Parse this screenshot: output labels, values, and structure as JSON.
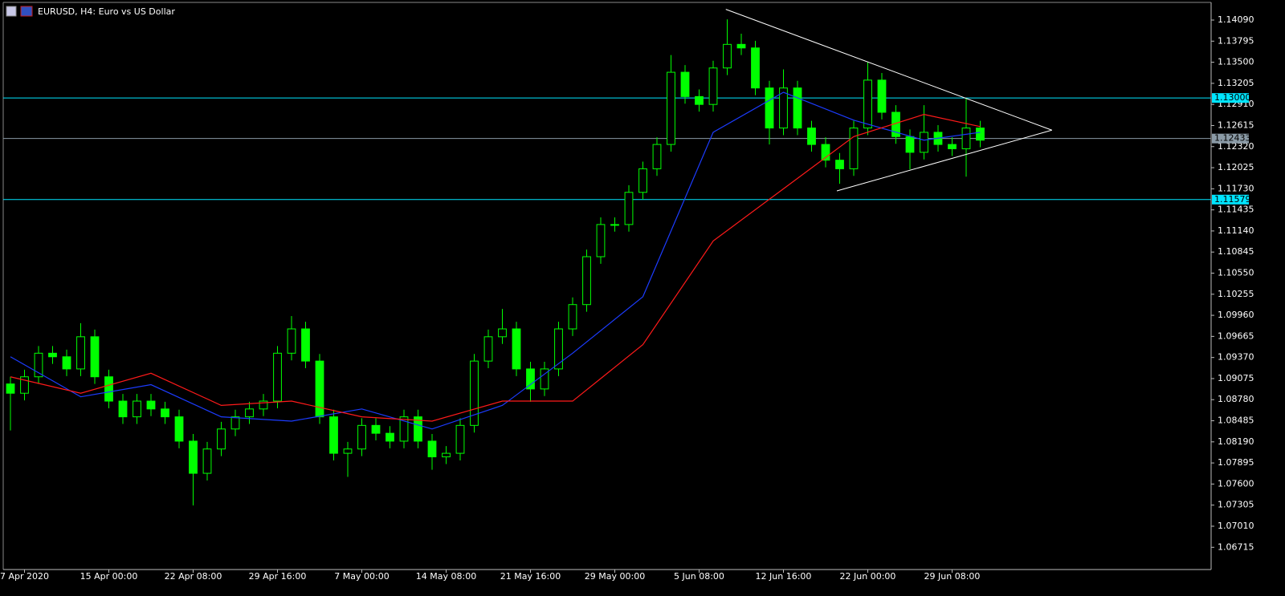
{
  "chart_data": {
    "type": "candlestick",
    "title": "EURUSD, H4:  Euro vs US Dollar",
    "categories": [
      null,
      "7 Apr 2020",
      null,
      null,
      null,
      null,
      null,
      "15 Apr 00:00",
      null,
      null,
      null,
      null,
      null,
      "22 Apr 08:00",
      null,
      null,
      null,
      null,
      null,
      "29 Apr 16:00",
      null,
      null,
      null,
      null,
      null,
      "7 May 00:00",
      null,
      null,
      null,
      null,
      null,
      "14 May 08:00",
      null,
      null,
      null,
      null,
      null,
      "21 May 16:00",
      null,
      null,
      null,
      null,
      null,
      "29 May 00:00",
      null,
      null,
      null,
      null,
      null,
      "5 Jun 08:00",
      null,
      null,
      null,
      null,
      null,
      "12 Jun 16:00",
      null,
      null,
      null,
      null,
      null,
      "22 Jun 00:00",
      null,
      null,
      null,
      null,
      null,
      "29 Jun 08:00",
      null,
      null
    ],
    "open": [
      1.09,
      1.0887,
      1.091,
      1.0943,
      1.0938,
      1.0921,
      1.0966,
      1.091,
      1.0876,
      1.0854,
      1.0876,
      1.0865,
      1.0854,
      1.082,
      1.0775,
      1.0809,
      1.0837,
      1.0854,
      1.0865,
      1.0876,
      1.0943,
      1.0977,
      1.0932,
      1.0854,
      1.0803,
      1.0809,
      1.0842,
      1.0831,
      1.082,
      1.0854,
      1.082,
      1.0798,
      1.0803,
      1.0842,
      1.0932,
      1.0966,
      1.0977,
      1.0921,
      1.0893,
      1.0921,
      1.0977,
      1.1011,
      1.1078,
      1.1123,
      1.1123,
      1.1168,
      1.1201,
      1.1235,
      1.1336,
      1.1302,
      1.1291,
      1.1342,
      1.1375,
      1.137,
      1.1314,
      1.1258,
      1.1314,
      1.1258,
      1.1235,
      1.1213,
      1.1201,
      1.1258,
      1.1325,
      1.128,
      1.1246,
      1.1224,
      1.1252,
      1.1235,
      1.1229,
      1.1258
    ],
    "high": [
      1.091,
      1.092,
      1.0953,
      1.0953,
      1.0948,
      1.0985,
      1.0976,
      1.092,
      1.0886,
      1.0886,
      1.0886,
      1.0875,
      1.0864,
      1.083,
      1.0819,
      1.0847,
      1.0864,
      1.0875,
      1.0886,
      1.0953,
      1.0995,
      1.0987,
      1.0942,
      1.0864,
      1.0819,
      1.0852,
      1.0852,
      1.0841,
      1.0864,
      1.0864,
      1.083,
      1.0813,
      1.0852,
      1.0942,
      1.0976,
      1.1005,
      1.0987,
      1.0931,
      1.0931,
      1.0987,
      1.1021,
      1.1088,
      1.1133,
      1.1133,
      1.1178,
      1.1211,
      1.1245,
      1.136,
      1.1346,
      1.1312,
      1.1352,
      1.141,
      1.139,
      1.138,
      1.1324,
      1.134,
      1.1324,
      1.1268,
      1.1245,
      1.1223,
      1.1268,
      1.135,
      1.1335,
      1.129,
      1.1256,
      1.129,
      1.1262,
      1.1245,
      1.13,
      1.1268
    ],
    "low": [
      1.0835,
      1.0877,
      1.09,
      1.0928,
      1.0911,
      1.0911,
      1.09,
      1.0866,
      1.0844,
      1.0844,
      1.0855,
      1.0844,
      1.081,
      1.073,
      1.0765,
      1.0799,
      1.0827,
      1.0844,
      1.0855,
      1.0866,
      1.0933,
      1.0922,
      1.0844,
      1.0793,
      1.077,
      1.0799,
      1.0821,
      1.081,
      1.081,
      1.081,
      1.078,
      1.0788,
      1.0793,
      1.0832,
      1.0922,
      1.0956,
      1.0911,
      1.0875,
      1.0883,
      1.0911,
      1.0967,
      1.1001,
      1.1068,
      1.1113,
      1.1113,
      1.1158,
      1.1191,
      1.1225,
      1.1292,
      1.1281,
      1.1281,
      1.1332,
      1.136,
      1.1304,
      1.1235,
      1.1248,
      1.1248,
      1.1225,
      1.1203,
      1.118,
      1.1191,
      1.1248,
      1.127,
      1.1236,
      1.12,
      1.1214,
      1.1225,
      1.1219,
      1.119,
      1.1231
    ],
    "close": [
      1.0887,
      1.091,
      1.0943,
      1.0938,
      1.0921,
      1.0966,
      1.091,
      1.0876,
      1.0854,
      1.0876,
      1.0865,
      1.0854,
      1.082,
      1.0775,
      1.0809,
      1.0837,
      1.0854,
      1.0865,
      1.0876,
      1.0943,
      1.0977,
      1.0932,
      1.0854,
      1.0803,
      1.0809,
      1.0842,
      1.0831,
      1.082,
      1.0854,
      1.082,
      1.0798,
      1.0803,
      1.0842,
      1.0932,
      1.0966,
      1.0977,
      1.0921,
      1.0893,
      1.0921,
      1.0977,
      1.1011,
      1.1078,
      1.1123,
      1.1123,
      1.1168,
      1.1201,
      1.1235,
      1.1336,
      1.1302,
      1.1291,
      1.1342,
      1.1375,
      1.137,
      1.1314,
      1.1258,
      1.1314,
      1.1258,
      1.1235,
      1.1213,
      1.1201,
      1.1258,
      1.1325,
      1.128,
      1.1246,
      1.1224,
      1.1252,
      1.1235,
      1.1229,
      1.1258,
      1.1241
    ],
    "color": "#00ff00",
    "ma": [
      {
        "color": "#1c3cff",
        "x": [
          0,
          5,
          10,
          15,
          20,
          25,
          30,
          35,
          40,
          45,
          50,
          55,
          60,
          65,
          69
        ],
        "values": [
          1.0938,
          1.0882,
          1.0899,
          1.0854,
          1.0848,
          1.0865,
          1.0837,
          1.087,
          1.0943,
          1.1022,
          1.1252,
          1.1308,
          1.1269,
          1.1241,
          1.1252
        ]
      },
      {
        "color": "#ff1a1a",
        "x": [
          0,
          5,
          10,
          15,
          20,
          25,
          30,
          35,
          40,
          45,
          50,
          55,
          60,
          65,
          69
        ],
        "values": [
          1.091,
          1.0887,
          1.0915,
          1.087,
          1.0876,
          1.0854,
          1.0848,
          1.0876,
          1.0876,
          1.0955,
          1.11,
          1.1173,
          1.1246,
          1.1277,
          1.126
        ]
      }
    ],
    "hlines": [
      {
        "value": 1.13,
        "label": "1.13000",
        "color": "#00e5ff"
      },
      {
        "value": 1.12433,
        "label": "1.12433",
        "color": "#8a9aa6"
      },
      {
        "value": 1.11579,
        "label": "1.11579",
        "color": "#00e5ff"
      }
    ],
    "trendlines": [
      {
        "x": [
          50.9,
          74.1
        ],
        "y": [
          1.1424,
          1.1255
        ],
        "color": "#ffffff"
      },
      {
        "x": [
          58.8,
          74.1
        ],
        "y": [
          1.117,
          1.1255
        ],
        "color": "#ffffff"
      }
    ],
    "ylim": [
      1.06404,
      1.14337
    ],
    "yticks": [
      {
        "value": 1.1409,
        "label": "1.14090"
      },
      1.13795,
      {
        "value": 1.135,
        "label": "1.13500"
      },
      1.13205,
      {
        "value": 1.1291,
        "label": "1.12910"
      },
      1.12615,
      {
        "value": 1.1232,
        "label": "1.12320"
      },
      1.12025,
      {
        "value": 1.1173,
        "label": "1.11730"
      },
      1.11435,
      {
        "value": 1.1114,
        "label": "1.11140"
      },
      1.10845,
      {
        "value": 1.1055,
        "label": "1.10550"
      },
      1.10255,
      {
        "value": 1.0996,
        "label": "1.09960"
      },
      1.09665,
      {
        "value": 1.0937,
        "label": "1.09370"
      },
      1.09075,
      {
        "value": 1.0878,
        "label": "1.08780"
      },
      1.08485,
      {
        "value": 1.0819,
        "label": "1.08190"
      },
      1.07895,
      {
        "value": 1.076,
        "label": "1.07600"
      },
      1.07305,
      {
        "value": 1.0701,
        "label": "1.07010"
      },
      1.06715
    ]
  }
}
